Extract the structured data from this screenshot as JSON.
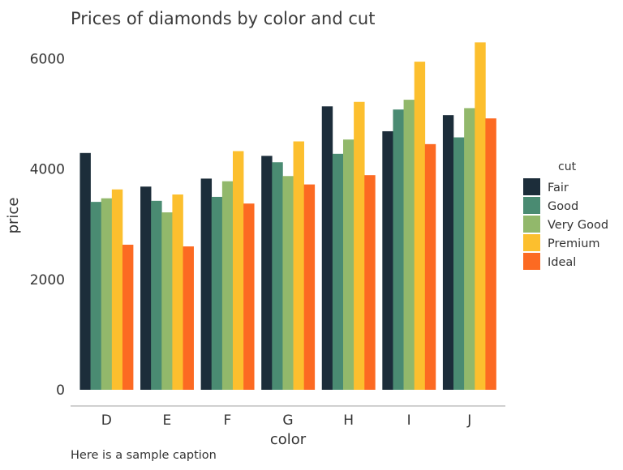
{
  "chart_data": {
    "type": "bar",
    "title": "Prices of diamonds by color and cut",
    "caption": "Here is a sample caption",
    "xlabel": "color",
    "ylabel": "price",
    "categories": [
      "D",
      "E",
      "F",
      "G",
      "H",
      "I",
      "J"
    ],
    "yticks": [
      0,
      2000,
      4000,
      6000
    ],
    "ytick_labels": [
      "0",
      "2000",
      "4000",
      "6000"
    ],
    "ylim": [
      0,
      6300
    ],
    "grid": false,
    "legend": {
      "title": "cut",
      "position": "right"
    },
    "series": [
      {
        "name": "Fair",
        "color": "#1c2d3a",
        "values": [
          4291,
          3682,
          3827,
          4239,
          5136,
          4685,
          4976
        ]
      },
      {
        "name": "Good",
        "color": "#4a8b72",
        "values": [
          3405,
          3424,
          3496,
          4123,
          4276,
          5079,
          4574
        ]
      },
      {
        "name": "Very Good",
        "color": "#92b86b",
        "values": [
          3470,
          3215,
          3779,
          3873,
          4535,
          5256,
          5104
        ]
      },
      {
        "name": "Premium",
        "color": "#fcbf2e",
        "values": [
          3631,
          3539,
          4325,
          4501,
          5217,
          5946,
          6295
        ]
      },
      {
        "name": "Ideal",
        "color": "#fc6a22",
        "values": [
          2629,
          2598,
          3375,
          3721,
          3889,
          4452,
          4918
        ]
      }
    ]
  }
}
